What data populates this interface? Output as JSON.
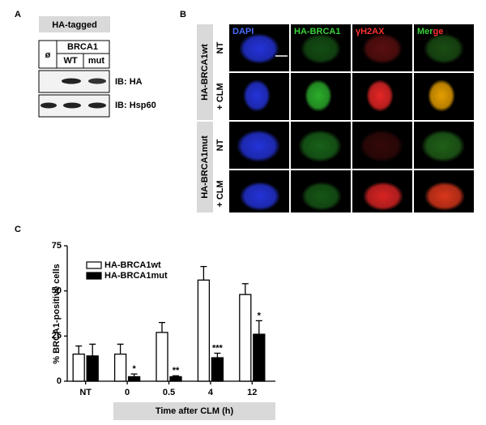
{
  "panel_a": {
    "label": "A",
    "header": "HA-tagged",
    "empty_vector": "ø",
    "construct": "BRCA1",
    "lanes": [
      "WT",
      "mut"
    ],
    "blots": [
      "IB: HA",
      "IB: Hsp60"
    ]
  },
  "panel_b": {
    "label": "B",
    "channels": [
      "DAPI",
      "HA-BRCA1",
      "γH2AX",
      "Merge"
    ],
    "groups": [
      {
        "name": "HA-BRCA1wt",
        "conditions": [
          "NT",
          "+ CLM"
        ]
      },
      {
        "name": "HA-BRCA1mut",
        "conditions": [
          "NT",
          "+ CLM"
        ]
      }
    ]
  },
  "chart_data": {
    "type": "bar",
    "panel_label": "C",
    "y_label": "% BRCA1-positive cells",
    "x_label": "Time after CLM (h)",
    "categories": [
      "NT",
      "0",
      "0.5",
      "4",
      "12"
    ],
    "series": [
      {
        "name": "HA-BRCA1wt",
        "color": "#ffffff",
        "values": [
          15,
          15,
          27,
          56,
          48
        ],
        "errors": [
          4.5,
          5.5,
          5.5,
          7.5,
          6
        ]
      },
      {
        "name": "HA-BRCA1mut",
        "color": "#000000",
        "values": [
          14,
          2.5,
          2.5,
          13,
          26
        ],
        "errors": [
          6.5,
          1.5,
          0.5,
          2.5,
          7.5
        ]
      }
    ],
    "significance": [
      null,
      "*",
      "**",
      "***",
      "*"
    ],
    "ylim": [
      0,
      75
    ],
    "yticks": [
      0,
      25,
      50,
      75
    ],
    "legend": "top-left"
  }
}
